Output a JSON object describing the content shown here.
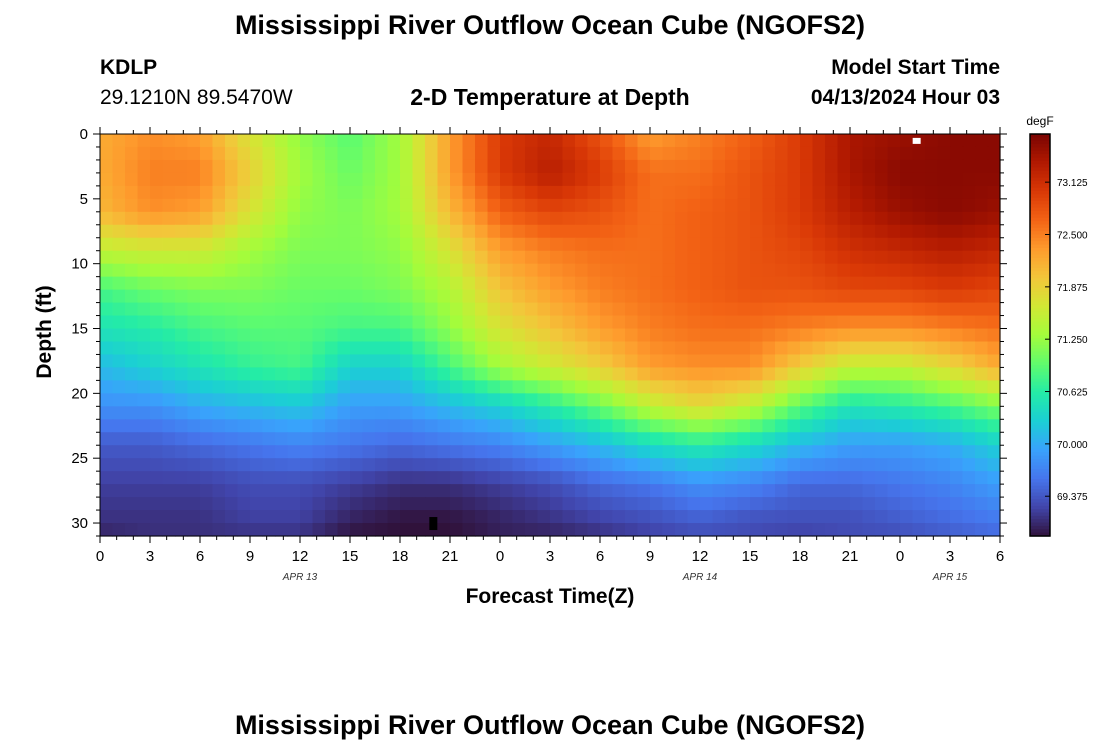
{
  "header": {
    "title": "Mississippi River Outflow Ocean Cube (NGOFS2)",
    "station": "KDLP",
    "coords": "29.1210N  89.5470W",
    "subtitle": "2-D Temperature at Depth",
    "model_start_label": "Model Start Time",
    "model_start_value": "04/13/2024 Hour 03"
  },
  "footer": {
    "title": "Mississippi River Outflow Ocean Cube (NGOFS2)"
  },
  "chart_data": {
    "type": "heatmap",
    "title": "2-D Temperature at Depth",
    "xlabel": "Forecast Time(Z)",
    "ylabel": "Depth (ft)",
    "x_tick_labels": [
      "0",
      "3",
      "6",
      "9",
      "12",
      "15",
      "18",
      "21",
      "0",
      "3",
      "6",
      "9",
      "12",
      "15",
      "18",
      "21",
      "0",
      "3",
      "6"
    ],
    "date_labels": [
      {
        "text": "APR 13",
        "at_hour": 12
      },
      {
        "text": "APR 14",
        "at_hour": 36
      },
      {
        "text": "APR 15",
        "at_hour": 51
      }
    ],
    "x_range_hours": [
      0,
      54
    ],
    "y_ticks": [
      0,
      5,
      10,
      15,
      20,
      25,
      30
    ],
    "y_range_ft": [
      0,
      31
    ],
    "grid": false,
    "colorbar": {
      "unit": "degF",
      "min": 68.9,
      "max": 73.7,
      "tick_values": [
        73.125,
        72.5,
        71.875,
        71.25,
        70.625,
        70.0,
        69.375
      ],
      "tick_labels": [
        "73.125",
        "72.500",
        "71.875",
        "71.250",
        "70.625",
        "70.000",
        "69.375"
      ],
      "colors": [
        "#30123b",
        "#4145ab",
        "#4675ed",
        "#39a2fc",
        "#1bcfd4",
        "#24eca6",
        "#61fc6c",
        "#a4fc3b",
        "#d1e834",
        "#f3c63a",
        "#fe9b2d",
        "#f36315",
        "#d93806",
        "#b11901",
        "#7a0402"
      ]
    },
    "temperature_field": {
      "description": "Temperature (degF) grid: rows = depth levels (ft), columns = forecast hour",
      "hours": [
        0,
        3,
        6,
        9,
        12,
        15,
        18,
        21,
        24,
        27,
        30,
        33,
        36,
        39,
        42,
        45,
        48,
        51,
        54
      ],
      "depths_ft": [
        0,
        3,
        6,
        9,
        12,
        15,
        18,
        21,
        24,
        27,
        30,
        31
      ],
      "values": [
        [
          72.2,
          72.4,
          72.3,
          71.7,
          71.2,
          70.9,
          71.3,
          72.3,
          73.0,
          73.2,
          72.8,
          72.3,
          72.5,
          72.7,
          73.0,
          73.4,
          73.5,
          73.6,
          73.6
        ],
        [
          72.2,
          72.5,
          72.5,
          71.9,
          71.3,
          71.0,
          71.3,
          72.3,
          73.0,
          73.3,
          73.0,
          72.6,
          72.6,
          72.8,
          73.0,
          73.4,
          73.6,
          73.6,
          73.6
        ],
        [
          72.1,
          72.4,
          72.3,
          71.7,
          71.2,
          71.1,
          71.3,
          72.1,
          72.7,
          72.9,
          72.8,
          72.6,
          72.7,
          72.8,
          73.0,
          73.3,
          73.5,
          73.6,
          73.5
        ],
        [
          71.5,
          71.6,
          71.6,
          71.3,
          71.1,
          71.1,
          71.2,
          71.7,
          72.3,
          72.5,
          72.6,
          72.6,
          72.7,
          72.8,
          72.9,
          73.1,
          73.2,
          73.3,
          73.2
        ],
        [
          70.8,
          71.0,
          71.1,
          71.1,
          71.0,
          71.0,
          71.1,
          71.4,
          72.0,
          72.3,
          72.5,
          72.6,
          72.7,
          72.8,
          72.8,
          72.9,
          72.9,
          73.0,
          72.9
        ],
        [
          70.5,
          70.6,
          70.8,
          70.9,
          70.9,
          70.8,
          70.8,
          71.2,
          71.7,
          72.0,
          72.3,
          72.5,
          72.6,
          72.6,
          72.5,
          72.4,
          72.4,
          72.5,
          72.6
        ],
        [
          70.1,
          70.3,
          70.5,
          70.7,
          70.8,
          70.3,
          70.3,
          70.8,
          71.3,
          71.6,
          71.9,
          72.3,
          72.4,
          72.4,
          71.9,
          71.5,
          71.5,
          71.8,
          72.2
        ],
        [
          69.8,
          69.8,
          70.0,
          70.1,
          70.2,
          69.9,
          69.9,
          70.1,
          70.3,
          70.6,
          71.0,
          71.5,
          71.8,
          71.5,
          70.9,
          70.5,
          70.6,
          70.8,
          71.1
        ],
        [
          69.4,
          69.4,
          69.5,
          69.6,
          69.7,
          69.6,
          69.5,
          69.6,
          69.7,
          69.9,
          70.1,
          70.4,
          70.6,
          70.4,
          70.1,
          69.9,
          69.9,
          70.0,
          70.3
        ],
        [
          69.2,
          69.2,
          69.2,
          69.3,
          69.3,
          69.2,
          69.1,
          69.1,
          69.2,
          69.3,
          69.5,
          69.6,
          69.8,
          69.7,
          69.5,
          69.5,
          69.6,
          69.7,
          69.9
        ],
        [
          69.1,
          69.1,
          69.1,
          69.2,
          69.2,
          69.0,
          68.9,
          68.9,
          69.0,
          69.1,
          69.2,
          69.3,
          69.4,
          69.3,
          69.3,
          69.3,
          69.4,
          69.5,
          69.6
        ],
        [
          69.0,
          69.1,
          69.1,
          69.1,
          69.1,
          68.9,
          68.9,
          68.9,
          69.0,
          69.0,
          69.1,
          69.2,
          69.3,
          69.3,
          69.2,
          69.3,
          69.3,
          69.4,
          69.5
        ]
      ]
    },
    "markers": [
      {
        "kind": "white-square",
        "hour": 49.0,
        "depth_ft": 0.3
      },
      {
        "kind": "black-square",
        "hour": 20.0,
        "depth_ft": 30.0
      }
    ]
  }
}
